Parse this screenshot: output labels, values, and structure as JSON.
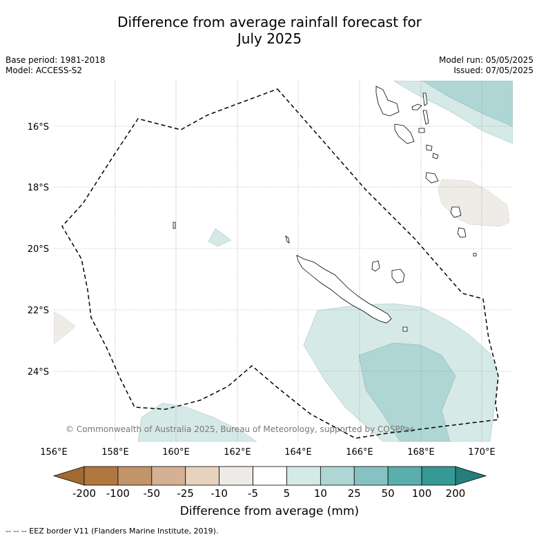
{
  "title": {
    "line1": "Difference from average rainfall forecast for",
    "line2": "July 2025"
  },
  "meta": {
    "base_period": "Base period: 1981-2018",
    "model": "Model: ACCESS-S2",
    "model_run": "Model run: 05/05/2025",
    "issued": "Issued: 07/05/2025"
  },
  "map": {
    "lat_ticks": [
      "16°S",
      "18°S",
      "20°S",
      "22°S",
      "24°S"
    ],
    "lon_ticks": [
      "156°E",
      "158°E",
      "160°E",
      "162°E",
      "164°E",
      "166°E",
      "168°E",
      "170°E"
    ],
    "copyright": "© Commonwealth of Australia 2025, Bureau of Meteorology, supported by COSPPac",
    "colors": {
      "land_outline": "#000000",
      "eez_border": "#000000",
      "neutral_shade": "#efebe7",
      "wet_light": "#d5e9e7",
      "wet_medium": "#aed6d5",
      "grid": "#888888"
    }
  },
  "colorbar": {
    "labels": [
      "-200",
      "-100",
      "-50",
      "-25",
      "-10",
      "-5",
      "5",
      "10",
      "25",
      "50",
      "100",
      "200"
    ],
    "colors": [
      "#a06a33",
      "#b07840",
      "#c19469",
      "#d4b193",
      "#e6d2be",
      "#eeebe7",
      "#ffffff",
      "#d5e9e7",
      "#aed6d5",
      "#86c2c1",
      "#5aaeac",
      "#359996",
      "#247f7c"
    ],
    "title": "Difference from average (mm)"
  },
  "footnote": "-- EEZ border V11 (Flanders Marine Institute, 2019)."
}
